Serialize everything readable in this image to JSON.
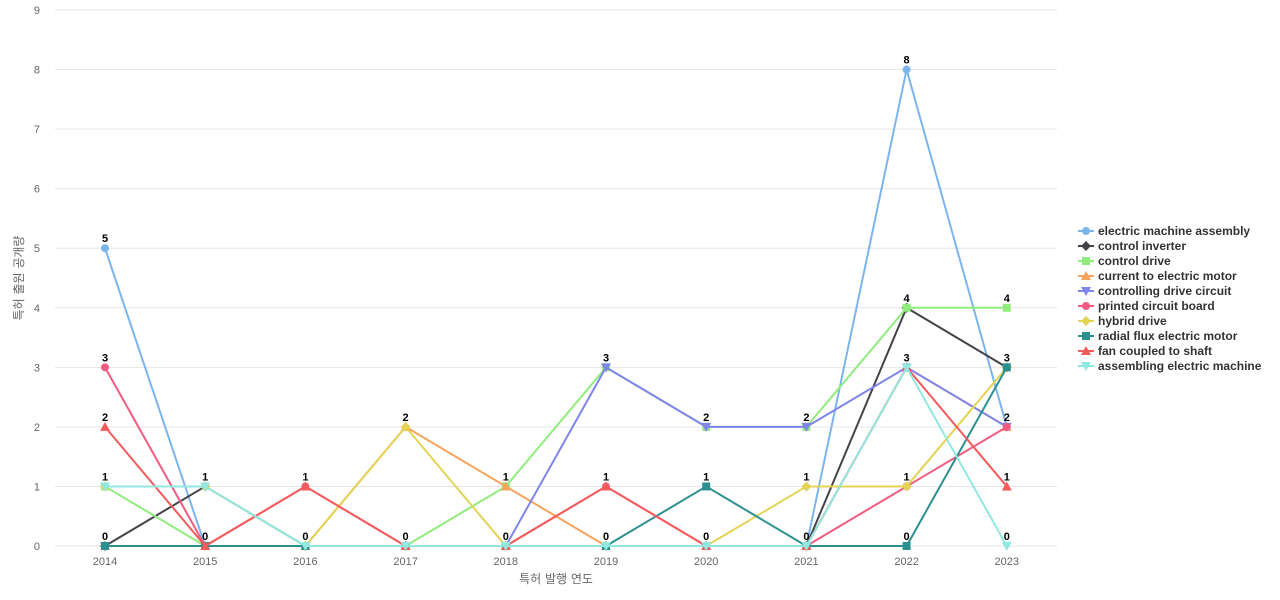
{
  "chart_data": {
    "type": "line",
    "xlabel": "특허 발행 연도",
    "ylabel": "특허 출원 공개량",
    "ylim": [
      0,
      9
    ],
    "yticks": [
      0,
      1,
      2,
      3,
      4,
      5,
      6,
      7,
      8,
      9
    ],
    "grid": true,
    "legend_position": "right",
    "categories": [
      "2014",
      "2015",
      "2016",
      "2017",
      "2018",
      "2019",
      "2020",
      "2021",
      "2022",
      "2023"
    ],
    "series": [
      {
        "name": "electric machine assembly",
        "color": "#7cb5ec",
        "marker": "circle",
        "values": [
          5,
          0,
          0,
          0,
          0,
          0,
          0,
          0,
          8,
          2
        ]
      },
      {
        "name": "control inverter",
        "color": "#434348",
        "marker": "diamond",
        "values": [
          0,
          1,
          0,
          0,
          0,
          0,
          0,
          0,
          4,
          3
        ]
      },
      {
        "name": "control drive",
        "color": "#90ed7d",
        "marker": "square",
        "values": [
          1,
          0,
          0,
          0,
          1,
          3,
          2,
          2,
          4,
          4
        ]
      },
      {
        "name": "current to electric motor",
        "color": "#f7a35c",
        "marker": "triangle",
        "values": [
          0,
          0,
          0,
          2,
          1,
          0,
          0,
          0,
          3,
          2
        ]
      },
      {
        "name": "controlling drive circuit",
        "color": "#8085e9",
        "marker": "triangle-down",
        "values": [
          0,
          0,
          0,
          0,
          0,
          3,
          2,
          2,
          3,
          2
        ]
      },
      {
        "name": "printed circuit board",
        "color": "#f15c80",
        "marker": "circle",
        "values": [
          3,
          0,
          1,
          0,
          0,
          1,
          0,
          0,
          1,
          2
        ]
      },
      {
        "name": "hybrid drive",
        "color": "#e4d354",
        "marker": "diamond",
        "values": [
          1,
          1,
          0,
          2,
          0,
          0,
          0,
          1,
          1,
          3
        ]
      },
      {
        "name": "radial flux electric motor",
        "color": "#2b908f",
        "marker": "square",
        "values": [
          0,
          0,
          0,
          0,
          0,
          0,
          1,
          0,
          0,
          3
        ]
      },
      {
        "name": "fan coupled to shaft",
        "color": "#f45b5b",
        "marker": "triangle",
        "values": [
          2,
          0,
          1,
          0,
          0,
          1,
          0,
          0,
          3,
          1
        ]
      },
      {
        "name": "assembling electric machine",
        "color": "#91e8e1",
        "marker": "triangle-down",
        "values": [
          1,
          1,
          0,
          0,
          0,
          0,
          0,
          0,
          3,
          0
        ]
      }
    ],
    "data_labels": [
      {
        "x": "2014",
        "values": [
          "5",
          "3",
          "2",
          "1",
          "0"
        ]
      },
      {
        "x": "2015",
        "values": [
          "1",
          "0"
        ]
      },
      {
        "x": "2016",
        "values": [
          "1",
          "0"
        ]
      },
      {
        "x": "2017",
        "values": [
          "2",
          "0"
        ]
      },
      {
        "x": "2018",
        "values": [
          "1",
          "0"
        ]
      },
      {
        "x": "2019",
        "values": [
          "3",
          "1",
          "0"
        ]
      },
      {
        "x": "2020",
        "values": [
          "2",
          "1",
          "0"
        ]
      },
      {
        "x": "2021",
        "values": [
          "2",
          "1",
          "0"
        ]
      },
      {
        "x": "2022",
        "values": [
          "8",
          "4",
          "3",
          "1",
          "0"
        ]
      },
      {
        "x": "2023",
        "values": [
          "4",
          "3",
          "2",
          "1",
          "0"
        ]
      }
    ]
  }
}
